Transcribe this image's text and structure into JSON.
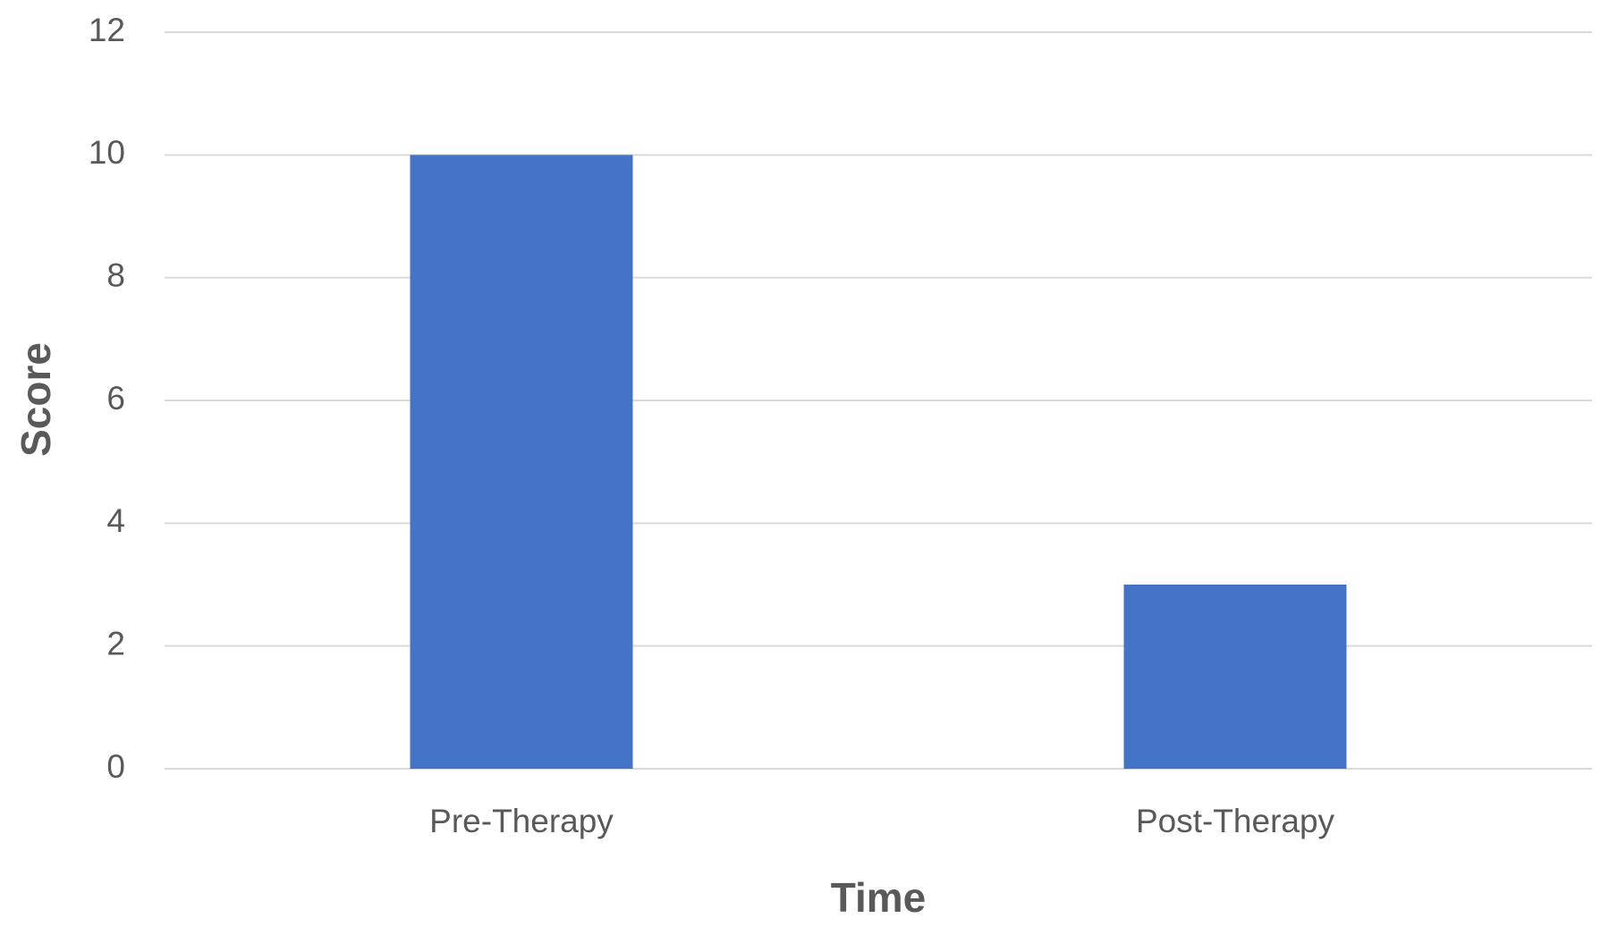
{
  "chart_data": {
    "type": "bar",
    "x_label": "Time",
    "y_label": "Score",
    "categories": [
      "Pre-Therapy",
      "Post-Therapy"
    ],
    "values": [
      10,
      3
    ],
    "color": "#4472c4",
    "ylim": [
      0,
      12
    ],
    "yticks": [
      0,
      2,
      4,
      6,
      8,
      10,
      12
    ],
    "grid": true
  }
}
